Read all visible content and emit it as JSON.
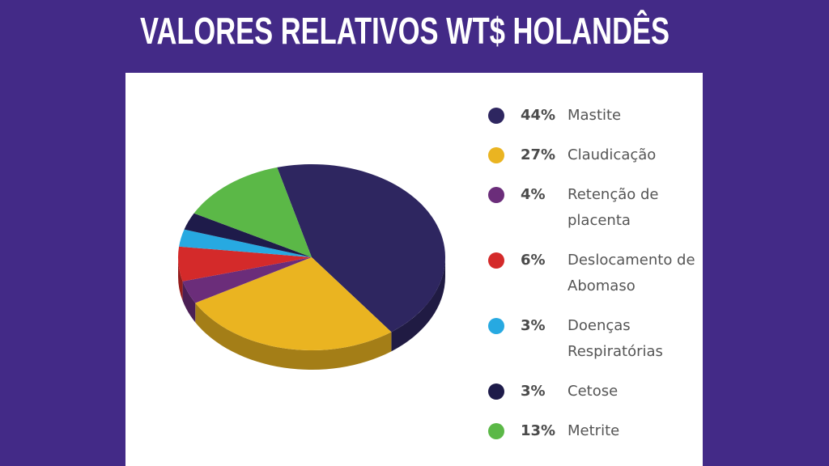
{
  "chart_data": {
    "type": "pie",
    "title": "VALORES RELATIVOS WT$ HOLANDÊS",
    "categories": [
      "Mastite",
      "Claudicação",
      "Retenção de placenta",
      "Deslocamento de Abomaso",
      "Doenças Respiratórias",
      "Cetose",
      "Metrite"
    ],
    "values": [
      44,
      27,
      4,
      6,
      3,
      3,
      13
    ],
    "value_labels": [
      "44%",
      "27%",
      "4%",
      "6%",
      "3%",
      "3%",
      "13%"
    ],
    "colors": [
      "#2e2660",
      "#eab421",
      "#6b2d7a",
      "#d42a2a",
      "#27a9e1",
      "#1e1b4a",
      "#5bb847"
    ]
  }
}
